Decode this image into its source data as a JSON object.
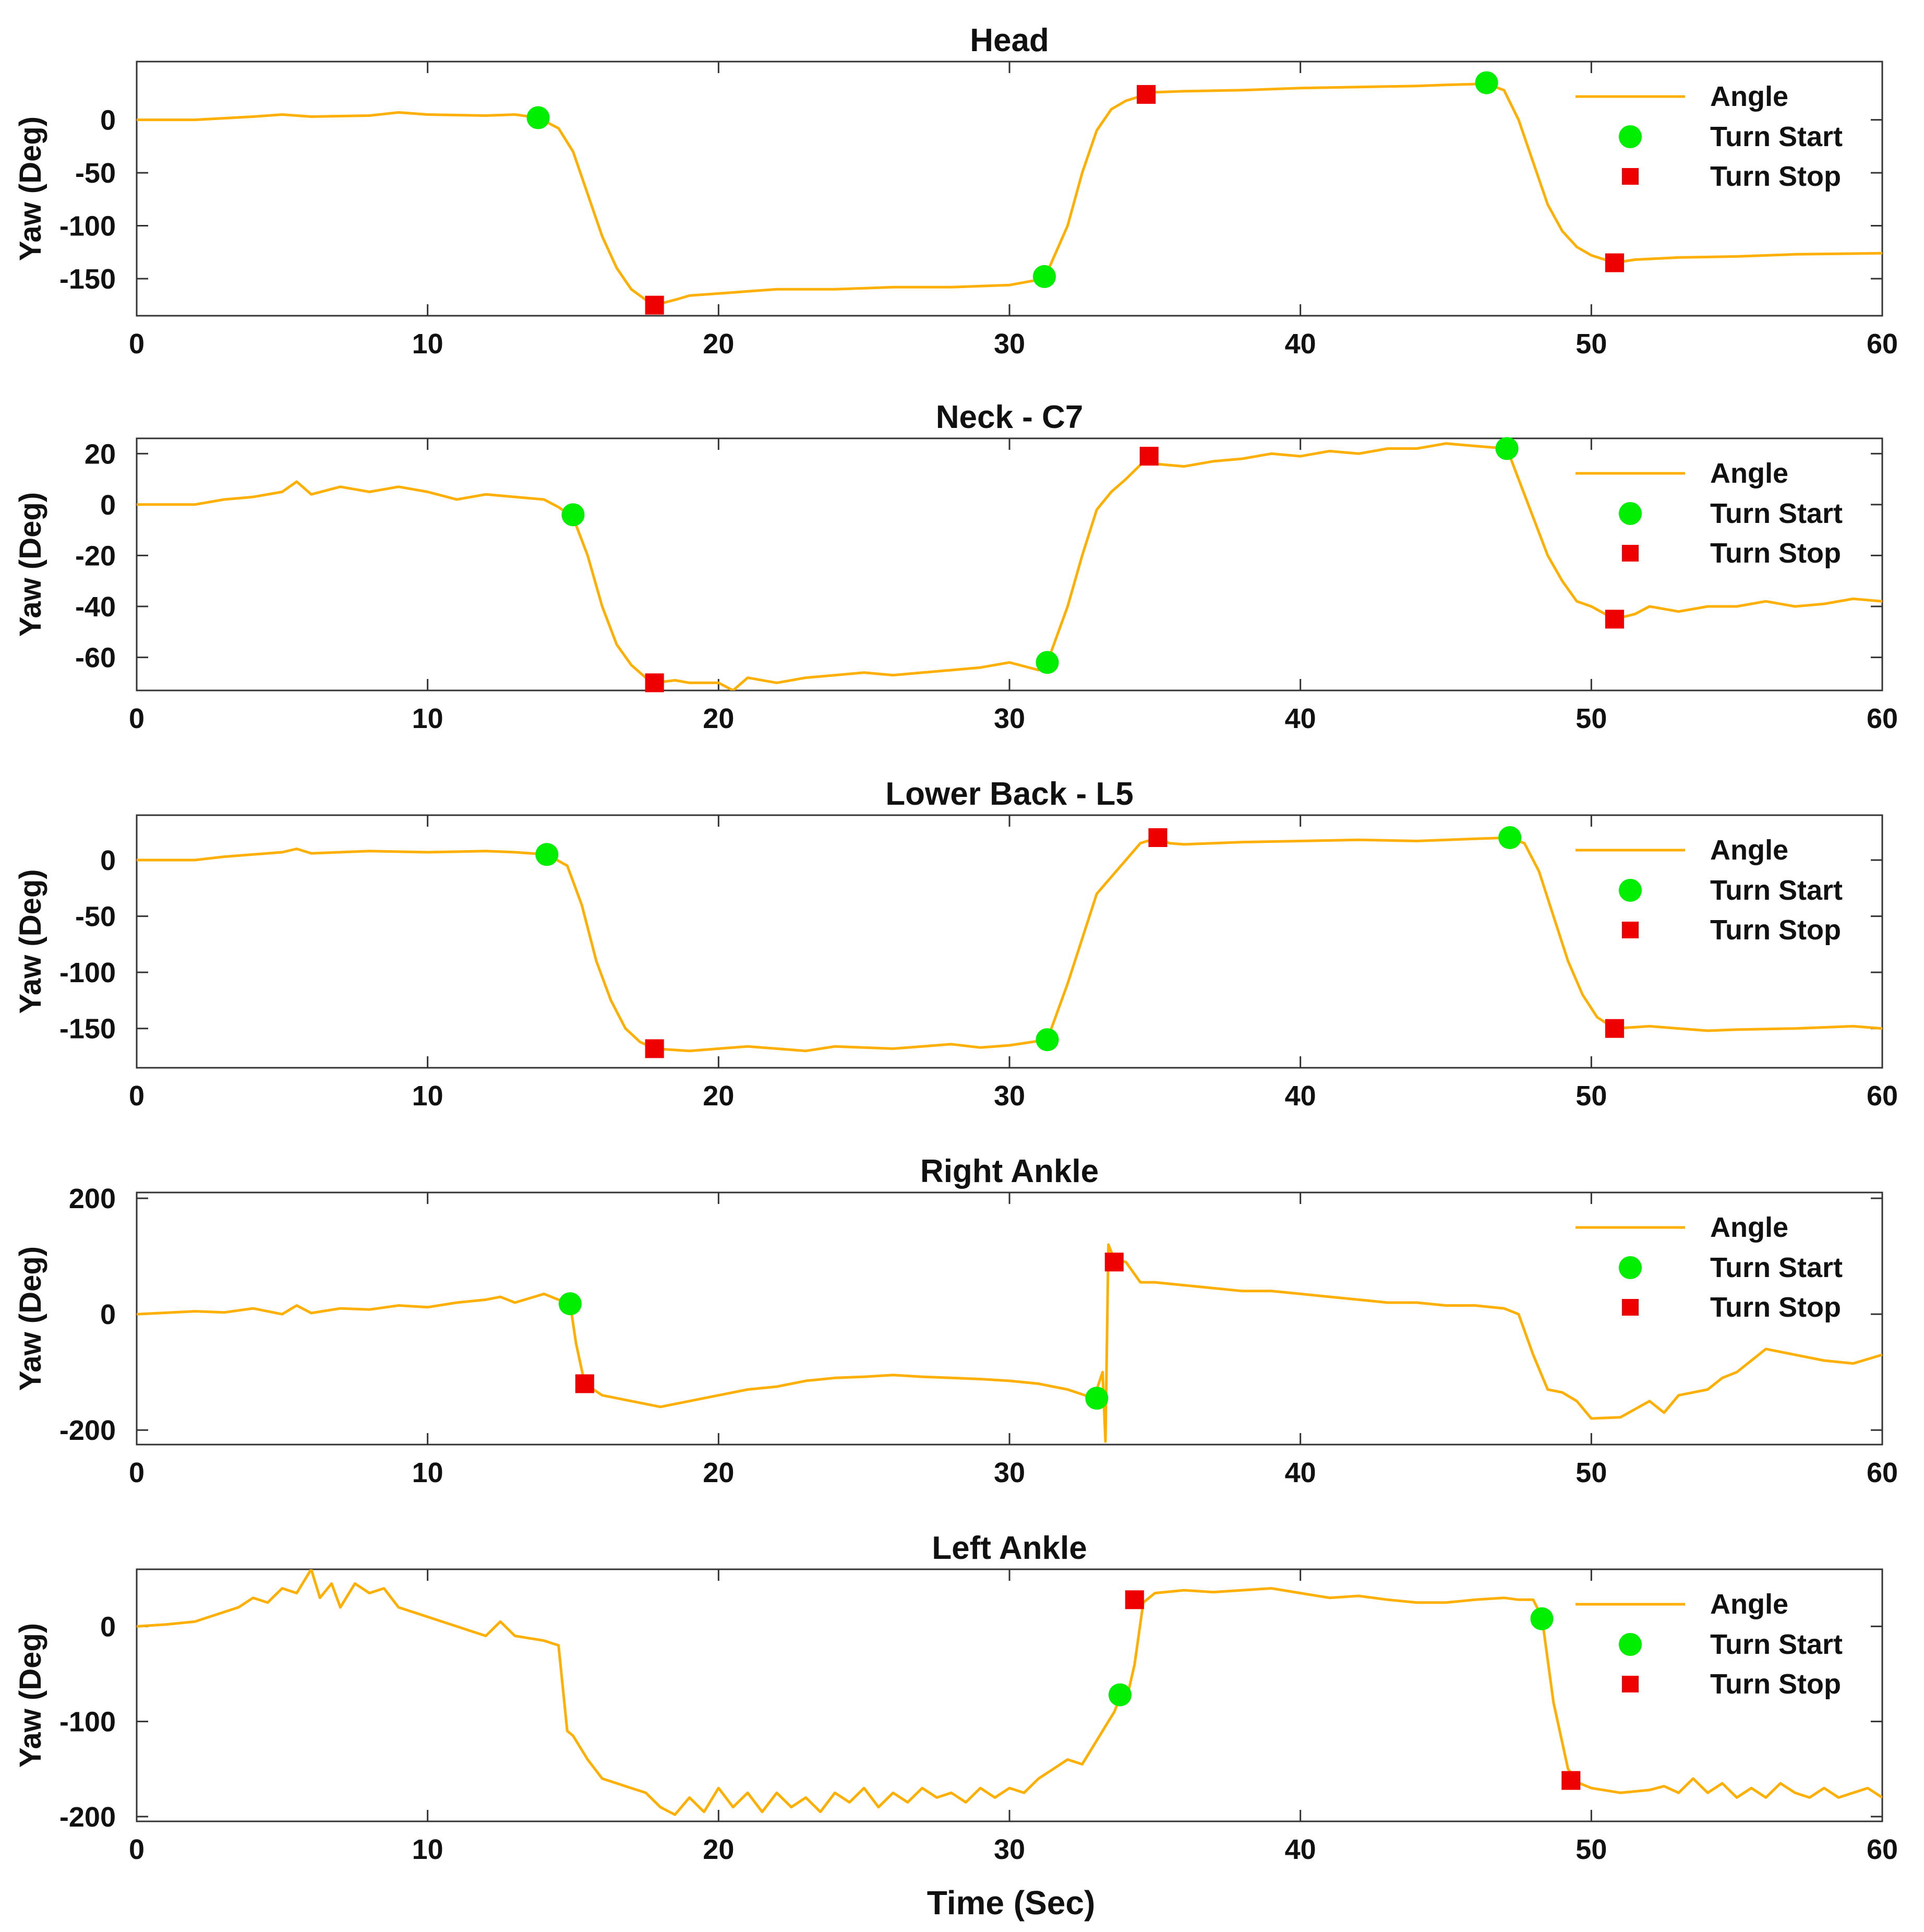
{
  "figure": {
    "xlabel": "Time (Sec)",
    "colors": {
      "angle": "#FFAF00",
      "turn_start": "#00EE00",
      "turn_stop": "#EE0000"
    }
  },
  "chart_data": [
    {
      "type": "line",
      "title": "Head",
      "xlabel": "",
      "ylabel": "Yaw (Deg)",
      "xlim": [
        0,
        60
      ],
      "ylim": [
        -185,
        55
      ],
      "xticks": [
        0,
        10,
        20,
        30,
        40,
        50,
        60
      ],
      "yticks": [
        -150,
        -100,
        -50,
        0
      ],
      "legend": [
        "Angle",
        "Turn Start",
        "Turn Stop"
      ],
      "legend_position": "top-right",
      "series": [
        {
          "name": "Angle",
          "x": [
            0,
            2,
            4,
            5,
            6,
            8,
            9,
            10,
            12,
            13,
            13.8,
            14.5,
            15,
            15.5,
            16,
            16.5,
            17,
            17.5,
            17.8,
            18.5,
            19,
            20,
            21,
            22,
            24,
            26,
            28,
            30,
            31.2,
            32,
            32.5,
            33,
            33.5,
            34,
            34.7,
            35,
            36,
            38,
            40,
            42,
            44,
            45,
            46.4,
            47,
            47.5,
            48,
            48.5,
            49,
            49.5,
            50,
            50.8,
            51.5,
            53,
            55,
            57,
            60
          ],
          "y": [
            0,
            0,
            3,
            5,
            3,
            4,
            7,
            5,
            4,
            5,
            2,
            -8,
            -30,
            -70,
            -110,
            -140,
            -160,
            -170,
            -175,
            -170,
            -166,
            -164,
            -162,
            -160,
            -160,
            -158,
            -158,
            -156,
            -150,
            -100,
            -50,
            -10,
            10,
            18,
            24,
            26,
            27,
            28,
            30,
            31,
            32,
            33,
            34,
            28,
            0,
            -40,
            -80,
            -105,
            -120,
            -128,
            -135,
            -132,
            -130,
            -129,
            -127,
            -126
          ]
        },
        {
          "name": "Turn Start",
          "x": [
            13.8,
            31.2,
            46.4
          ],
          "y": [
            2,
            -148,
            35
          ]
        },
        {
          "name": "Turn Stop",
          "x": [
            17.8,
            34.7,
            50.8
          ],
          "y": [
            -175,
            24,
            -135
          ]
        }
      ]
    },
    {
      "type": "line",
      "title": "Neck - C7",
      "xlabel": "",
      "ylabel": "Yaw (Deg)",
      "xlim": [
        0,
        60
      ],
      "ylim": [
        -73,
        26
      ],
      "xticks": [
        0,
        10,
        20,
        30,
        40,
        50,
        60
      ],
      "yticks": [
        -60,
        -40,
        -20,
        0,
        20
      ],
      "legend": [
        "Angle",
        "Turn Start",
        "Turn Stop"
      ],
      "legend_position": "top-right",
      "series": [
        {
          "name": "Angle",
          "x": [
            0,
            2,
            3,
            4,
            5,
            5.5,
            6,
            7,
            8,
            9,
            10,
            11,
            12,
            13,
            14,
            14.5,
            15,
            15.5,
            16,
            16.5,
            17,
            17.5,
            17.8,
            18.5,
            19,
            20,
            20.5,
            21,
            22,
            23,
            24,
            25,
            26,
            27,
            28,
            29,
            30,
            31,
            31.3,
            32,
            32.5,
            33,
            33.5,
            34,
            34.8,
            35,
            36,
            37,
            38,
            39,
            40,
            41,
            42,
            43,
            44,
            45,
            46,
            47.1,
            47.5,
            48,
            48.5,
            49,
            49.5,
            50,
            50.8,
            51.5,
            52,
            53,
            54,
            55,
            56,
            57,
            58,
            59,
            60
          ],
          "y": [
            0,
            0,
            2,
            3,
            5,
            9,
            4,
            7,
            5,
            7,
            5,
            2,
            4,
            3,
            2,
            -1,
            -5,
            -20,
            -40,
            -55,
            -63,
            -68,
            -70,
            -69,
            -70,
            -70,
            -73,
            -68,
            -70,
            -68,
            -67,
            -66,
            -67,
            -66,
            -65,
            -64,
            -62,
            -65,
            -62,
            -40,
            -20,
            -2,
            5,
            10,
            19,
            16,
            15,
            17,
            18,
            20,
            19,
            21,
            20,
            22,
            22,
            24,
            23,
            22,
            10,
            -5,
            -20,
            -30,
            -38,
            -40,
            -45,
            -43,
            -40,
            -42,
            -40,
            -40,
            -38,
            -40,
            -39,
            -37,
            -38
          ]
        },
        {
          "name": "Turn Start",
          "x": [
            15,
            31.3,
            47.1
          ],
          "y": [
            -4,
            -62,
            22
          ]
        },
        {
          "name": "Turn Stop",
          "x": [
            17.8,
            34.8,
            50.8
          ],
          "y": [
            -70,
            19,
            -45
          ]
        }
      ]
    },
    {
      "type": "line",
      "title": "Lower Back - L5",
      "xlabel": "",
      "ylabel": "Yaw (Deg)",
      "xlim": [
        0,
        60
      ],
      "ylim": [
        -185,
        40
      ],
      "xticks": [
        0,
        10,
        20,
        30,
        40,
        50,
        60
      ],
      "yticks": [
        -150,
        -100,
        -50,
        0
      ],
      "legend": [
        "Angle",
        "Turn Start",
        "Turn Stop"
      ],
      "legend_position": "top-right",
      "series": [
        {
          "name": "Angle",
          "x": [
            0,
            2,
            3,
            4,
            5,
            5.5,
            6,
            8,
            10,
            12,
            13,
            14.1,
            14.8,
            15.3,
            15.8,
            16.3,
            16.8,
            17.3,
            17.8,
            19,
            20,
            21,
            22,
            23,
            24,
            25,
            26,
            27,
            28,
            29,
            30,
            31.3,
            32,
            32.5,
            33,
            33.5,
            34,
            34.5,
            35.1,
            35.5,
            36,
            38,
            40,
            42,
            44,
            46,
            47.2,
            47.7,
            48.2,
            48.7,
            49.2,
            49.7,
            50.2,
            50.8,
            52,
            53,
            54,
            55,
            57,
            59,
            60
          ],
          "y": [
            0,
            0,
            3,
            5,
            7,
            10,
            6,
            8,
            7,
            8,
            7,
            5,
            -5,
            -40,
            -90,
            -125,
            -150,
            -162,
            -168,
            -170,
            -168,
            -166,
            -168,
            -170,
            -166,
            -167,
            -168,
            -166,
            -164,
            -167,
            -165,
            -160,
            -110,
            -70,
            -30,
            -15,
            0,
            15,
            20,
            15,
            14,
            16,
            17,
            18,
            17,
            19,
            20,
            15,
            -10,
            -50,
            -90,
            -120,
            -140,
            -150,
            -148,
            -150,
            -152,
            -151,
            -150,
            -148,
            -150
          ]
        },
        {
          "name": "Turn Start",
          "x": [
            14.1,
            31.3,
            47.2
          ],
          "y": [
            5,
            -160,
            20
          ]
        },
        {
          "name": "Turn Stop",
          "x": [
            17.8,
            35.1,
            50.8
          ],
          "y": [
            -168,
            20,
            -150
          ]
        }
      ]
    },
    {
      "type": "line",
      "title": "Right Ankle",
      "xlabel": "",
      "ylabel": "Yaw (Deg)",
      "xlim": [
        0,
        60
      ],
      "ylim": [
        -225,
        210
      ],
      "xticks": [
        0,
        10,
        20,
        30,
        40,
        50,
        60
      ],
      "yticks": [
        -200,
        0,
        200
      ],
      "legend": [
        "Angle",
        "Turn Start",
        "Turn Stop"
      ],
      "legend_position": "top-right",
      "series": [
        {
          "name": "Angle",
          "x": [
            0,
            2,
            3,
            4,
            5,
            5.5,
            6,
            7,
            8,
            9,
            10,
            11,
            12,
            12.5,
            13,
            14,
            14.5,
            14.9,
            15.1,
            15.4,
            16,
            17,
            18,
            19,
            20,
            21,
            22,
            23,
            24,
            25,
            26,
            27,
            28,
            29,
            30,
            31,
            32,
            32.9,
            33.2,
            33.3,
            33.4,
            33.6,
            34,
            34.5,
            35,
            36,
            37,
            38,
            39,
            40,
            41,
            42,
            43,
            44,
            45,
            46,
            47,
            47.5,
            48,
            48.5,
            49,
            49.5,
            50,
            51,
            52,
            52.5,
            53,
            54,
            54.5,
            55,
            55.5,
            56,
            57,
            58,
            59,
            60
          ],
          "y": [
            0,
            5,
            3,
            10,
            0,
            15,
            2,
            10,
            8,
            15,
            12,
            20,
            25,
            30,
            20,
            35,
            25,
            18,
            -50,
            -120,
            -140,
            -150,
            -160,
            -150,
            -140,
            -130,
            -125,
            -115,
            -110,
            -108,
            -105,
            -108,
            -110,
            -112,
            -115,
            -120,
            -130,
            -145,
            -100,
            -220,
            120,
            95,
            90,
            55,
            55,
            50,
            45,
            40,
            40,
            35,
            30,
            25,
            20,
            20,
            15,
            15,
            10,
            0,
            -70,
            -130,
            -135,
            -150,
            -180,
            -178,
            -150,
            -170,
            -140,
            -130,
            -110,
            -100,
            -80,
            -60,
            -70,
            -80,
            -85,
            -70
          ]
        },
        {
          "name": "Turn Start",
          "x": [
            14.9,
            33
          ],
          "y": [
            18,
            -145
          ]
        },
        {
          "name": "Turn Stop",
          "x": [
            15.4,
            33.6
          ],
          "y": [
            -120,
            90
          ]
        }
      ]
    },
    {
      "type": "line",
      "title": "Left Ankle",
      "xlabel": "Time (Sec)",
      "ylabel": "Yaw (Deg)",
      "xlim": [
        0,
        60
      ],
      "ylim": [
        -205,
        60
      ],
      "xticks": [
        0,
        10,
        20,
        30,
        40,
        50,
        60
      ],
      "yticks": [
        -200,
        -100,
        0
      ],
      "legend": [
        "Angle",
        "Turn Start",
        "Turn Stop"
      ],
      "legend_position": "top-right",
      "series": [
        {
          "name": "Angle",
          "x": [
            0,
            1,
            2,
            3,
            3.5,
            4,
            4.5,
            5,
            5.5,
            6,
            6.3,
            6.7,
            7,
            7.5,
            8,
            8.5,
            9,
            10,
            11,
            12,
            12.5,
            13,
            14,
            14.5,
            14.8,
            15,
            15.5,
            16,
            16.5,
            17,
            17.5,
            18,
            18.5,
            19,
            19.5,
            20,
            20.5,
            21,
            21.5,
            22,
            22.5,
            23,
            23.5,
            24,
            24.5,
            25,
            25.5,
            26,
            26.5,
            27,
            27.5,
            28,
            28.5,
            29,
            29.5,
            30,
            30.5,
            31,
            31.5,
            32,
            32.5,
            33,
            33.3,
            33.6,
            33.8,
            34,
            34.3,
            34.6,
            35,
            36,
            37,
            38,
            39,
            40,
            41,
            42,
            43,
            44,
            45,
            46,
            47,
            47.5,
            48,
            48.3,
            48.7,
            49.2,
            49.6,
            50,
            51,
            52,
            52.5,
            53,
            53.5,
            54,
            54.5,
            55,
            55.5,
            56,
            56.5,
            57,
            57.5,
            58,
            58.5,
            59,
            59.5,
            60
          ],
          "y": [
            0,
            2,
            5,
            15,
            20,
            30,
            25,
            40,
            35,
            60,
            30,
            45,
            20,
            45,
            35,
            40,
            20,
            10,
            0,
            -10,
            5,
            -10,
            -15,
            -20,
            -110,
            -115,
            -140,
            -160,
            -165,
            -170,
            -175,
            -190,
            -198,
            -180,
            -195,
            -170,
            -190,
            -175,
            -195,
            -175,
            -190,
            -180,
            -195,
            -175,
            -185,
            -170,
            -190,
            -175,
            -185,
            -170,
            -180,
            -175,
            -185,
            -170,
            -180,
            -170,
            -175,
            -160,
            -150,
            -140,
            -145,
            -120,
            -105,
            -90,
            -75,
            -80,
            -40,
            25,
            35,
            38,
            36,
            38,
            40,
            35,
            30,
            32,
            28,
            25,
            25,
            28,
            30,
            28,
            28,
            10,
            -80,
            -150,
            -165,
            -170,
            -175,
            -172,
            -168,
            -175,
            -160,
            -175,
            -165,
            -180,
            -170,
            -180,
            -165,
            -175,
            -180,
            -170,
            -180,
            -175,
            -170,
            -180
          ]
        },
        {
          "name": "Turn Start",
          "x": [
            33.8,
            48.3
          ],
          "y": [
            -72,
            8
          ]
        },
        {
          "name": "Turn Stop",
          "x": [
            34.3,
            49.3
          ],
          "y": [
            28,
            -162
          ]
        }
      ]
    }
  ]
}
